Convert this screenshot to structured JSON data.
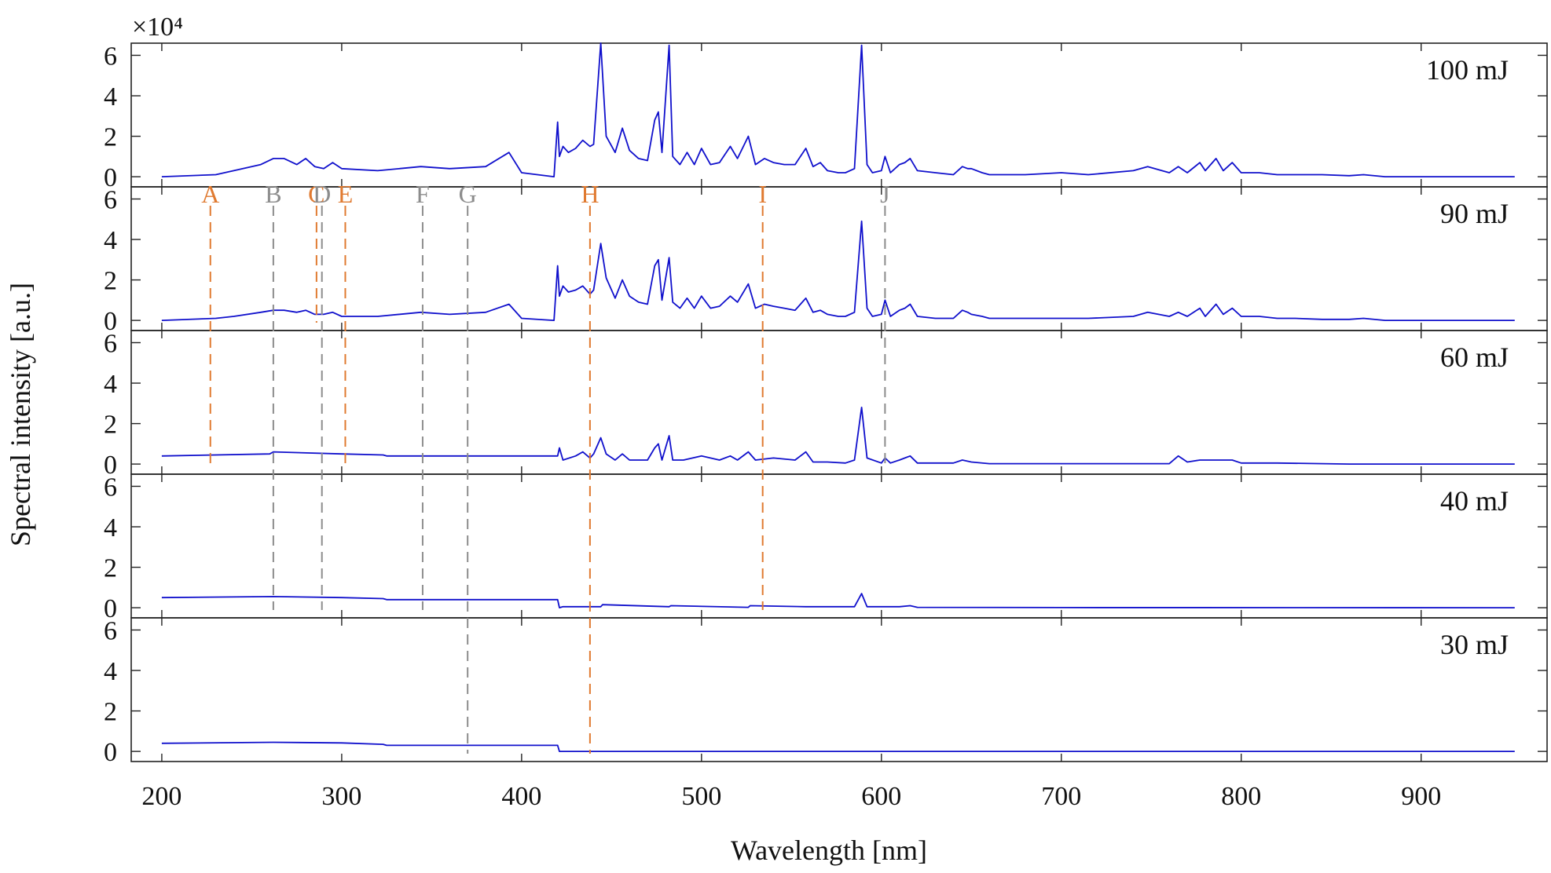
{
  "chart_data": {
    "type": "line",
    "ylabel": "Spectral intensity [a.u.]",
    "xlabel": "Wavelength [nm]",
    "exponent_label": "×10⁴",
    "xlim": [
      183,
      970
    ],
    "ylim": [
      -0.5,
      6.6
    ],
    "x_ticks": [
      200,
      300,
      400,
      500,
      600,
      700,
      800,
      900
    ],
    "y_ticks": [
      0,
      2,
      4,
      6
    ],
    "grid": false,
    "line_color": "#1010cc",
    "marker_colors": {
      "orange": "#e07a30",
      "gray": "#8c8c8c"
    },
    "markers": [
      {
        "label": "A",
        "x": 227,
        "color": "orange"
      },
      {
        "label": "B",
        "x": 262,
        "color": "gray"
      },
      {
        "label": "C",
        "x": 286,
        "color": "orange"
      },
      {
        "label": "D",
        "x": 289,
        "color": "gray"
      },
      {
        "label": "E",
        "x": 302,
        "color": "orange"
      },
      {
        "label": "F",
        "x": 345,
        "color": "gray"
      },
      {
        "label": "G",
        "x": 370,
        "color": "gray"
      },
      {
        "label": "H",
        "x": 438,
        "color": "orange"
      },
      {
        "label": "I",
        "x": 534,
        "color": "orange"
      },
      {
        "label": "J",
        "x": 602,
        "color": "gray"
      }
    ],
    "panels": [
      {
        "label": "100 mJ",
        "x": [
          200,
          230,
          240,
          255,
          262,
          268,
          275,
          280,
          285,
          290,
          295,
          300,
          320,
          344,
          360,
          380,
          393,
          400,
          418,
          420,
          421,
          423,
          426,
          430,
          434,
          438,
          440,
          444,
          447,
          452,
          456,
          460,
          465,
          470,
          474,
          476,
          478,
          482,
          484,
          488,
          492,
          496,
          500,
          505,
          510,
          516,
          520,
          526,
          530,
          535,
          540,
          546,
          552,
          558,
          562,
          566,
          570,
          576,
          580,
          585,
          589,
          592,
          595,
          600,
          602,
          605,
          610,
          613,
          616,
          620,
          630,
          640,
          645,
          648,
          650,
          656,
          660,
          670,
          680,
          700,
          715,
          740,
          748,
          760,
          765,
          770,
          777,
          780,
          786,
          790,
          795,
          800,
          810,
          820,
          830,
          845,
          860,
          868,
          880,
          900,
          920,
          952
        ],
        "values": [
          0,
          0.1,
          0.3,
          0.6,
          0.9,
          0.9,
          0.6,
          0.9,
          0.5,
          0.4,
          0.7,
          0.4,
          0.3,
          0.5,
          0.4,
          0.5,
          1.2,
          0.2,
          0,
          2.7,
          1.0,
          1.5,
          1.2,
          1.4,
          1.8,
          1.5,
          1.6,
          6.6,
          2.0,
          1.2,
          2.4,
          1.3,
          0.9,
          0.8,
          2.8,
          3.2,
          1.2,
          6.5,
          1.0,
          0.6,
          1.2,
          0.6,
          1.4,
          0.6,
          0.7,
          1.5,
          0.9,
          2.0,
          0.6,
          0.9,
          0.7,
          0.6,
          0.6,
          1.4,
          0.5,
          0.7,
          0.3,
          0.2,
          0.2,
          0.4,
          6.5,
          0.6,
          0.2,
          0.3,
          1.0,
          0.2,
          0.6,
          0.7,
          0.9,
          0.3,
          0.2,
          0.1,
          0.5,
          0.4,
          0.4,
          0.2,
          0.1,
          0.1,
          0.1,
          0.2,
          0.1,
          0.3,
          0.5,
          0.2,
          0.5,
          0.2,
          0.7,
          0.3,
          0.9,
          0.3,
          0.7,
          0.2,
          0.2,
          0.1,
          0.1,
          0.1,
          0.05,
          0.1,
          0,
          0,
          0,
          0
        ]
      },
      {
        "label": "90 mJ",
        "x": [
          200,
          230,
          240,
          255,
          262,
          268,
          275,
          280,
          285,
          290,
          295,
          300,
          320,
          344,
          360,
          380,
          393,
          400,
          418,
          420,
          421,
          423,
          426,
          430,
          434,
          438,
          440,
          444,
          447,
          452,
          456,
          460,
          465,
          470,
          474,
          476,
          478,
          482,
          484,
          488,
          492,
          496,
          500,
          505,
          510,
          516,
          520,
          526,
          530,
          535,
          540,
          546,
          552,
          558,
          562,
          566,
          570,
          576,
          580,
          585,
          589,
          592,
          595,
          600,
          602,
          605,
          610,
          613,
          616,
          620,
          630,
          640,
          645,
          648,
          650,
          656,
          660,
          670,
          680,
          700,
          715,
          740,
          748,
          760,
          765,
          770,
          777,
          780,
          786,
          790,
          795,
          800,
          810,
          820,
          830,
          845,
          860,
          868,
          880,
          900,
          920,
          952
        ],
        "values": [
          0,
          0.1,
          0.2,
          0.4,
          0.5,
          0.5,
          0.4,
          0.5,
          0.3,
          0.3,
          0.4,
          0.2,
          0.2,
          0.4,
          0.3,
          0.4,
          0.8,
          0.1,
          0,
          2.7,
          1.2,
          1.7,
          1.4,
          1.5,
          1.7,
          1.3,
          1.5,
          3.8,
          2.1,
          1.1,
          2.0,
          1.2,
          0.9,
          0.8,
          2.7,
          3.0,
          1.0,
          3.1,
          0.9,
          0.6,
          1.1,
          0.6,
          1.2,
          0.6,
          0.7,
          1.2,
          0.9,
          1.8,
          0.6,
          0.8,
          0.7,
          0.6,
          0.5,
          1.1,
          0.4,
          0.5,
          0.3,
          0.2,
          0.2,
          0.4,
          4.9,
          0.6,
          0.2,
          0.3,
          1.0,
          0.2,
          0.5,
          0.6,
          0.8,
          0.2,
          0.1,
          0.1,
          0.5,
          0.4,
          0.3,
          0.2,
          0.1,
          0.1,
          0.1,
          0.1,
          0.1,
          0.2,
          0.4,
          0.2,
          0.4,
          0.2,
          0.6,
          0.2,
          0.8,
          0.3,
          0.6,
          0.2,
          0.2,
          0.1,
          0.1,
          0.05,
          0.05,
          0.1,
          0,
          0,
          0,
          0
        ]
      },
      {
        "label": "60 mJ",
        "x": [
          200,
          260,
          262,
          300,
          323,
          325,
          420,
          421,
          423,
          430,
          434,
          438,
          440,
          444,
          447,
          452,
          456,
          460,
          470,
          474,
          476,
          478,
          482,
          484,
          490,
          500,
          510,
          516,
          520,
          526,
          530,
          540,
          552,
          558,
          562,
          570,
          580,
          585,
          589,
          592,
          600,
          602,
          605,
          610,
          613,
          616,
          620,
          640,
          645,
          650,
          660,
          700,
          760,
          765,
          770,
          777,
          786,
          795,
          800,
          820,
          860,
          952
        ],
        "values": [
          0.4,
          0.5,
          0.6,
          0.5,
          0.45,
          0.4,
          0.4,
          0.8,
          0.2,
          0.4,
          0.6,
          0.3,
          0.5,
          1.3,
          0.5,
          0.2,
          0.5,
          0.2,
          0.2,
          0.8,
          1.0,
          0.2,
          1.4,
          0.2,
          0.2,
          0.4,
          0.2,
          0.4,
          0.2,
          0.6,
          0.2,
          0.3,
          0.2,
          0.6,
          0.1,
          0.1,
          0.05,
          0.2,
          2.8,
          0.3,
          0.05,
          0.3,
          0.05,
          0.2,
          0.3,
          0.4,
          0.05,
          0.05,
          0.2,
          0.1,
          0.02,
          0.02,
          0.02,
          0.4,
          0.1,
          0.2,
          0.2,
          0.2,
          0.05,
          0.05,
          0,
          0
        ]
      },
      {
        "label": "40 mJ",
        "x": [
          200,
          262,
          300,
          323,
          325,
          420,
          421,
          423,
          444,
          445,
          482,
          483,
          526,
          527,
          558,
          585,
          589,
          592,
          610,
          616,
          620,
          700,
          952
        ],
        "values": [
          0.5,
          0.55,
          0.5,
          0.45,
          0.4,
          0.4,
          0,
          0.05,
          0.05,
          0.15,
          0.05,
          0.1,
          0.02,
          0.1,
          0.05,
          0.05,
          0.7,
          0.05,
          0.05,
          0.1,
          0.02,
          0.01,
          0
        ]
      },
      {
        "label": "30 mJ",
        "x": [
          200,
          262,
          300,
          323,
          325,
          420,
          421,
          423,
          952
        ],
        "values": [
          0.4,
          0.45,
          0.42,
          0.35,
          0.3,
          0.3,
          0,
          0,
          0
        ]
      }
    ]
  }
}
